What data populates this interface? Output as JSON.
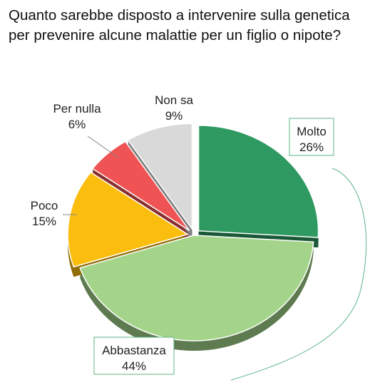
{
  "chart_data": {
    "type": "pie",
    "title": "Quanto sarebbe disposto a intervenire sulla genetica per prevenire alcune malattie per un figlio o nipote?",
    "slices": [
      {
        "label": "Molto",
        "value_label": "26%",
        "value": 26,
        "color": "#2e9a62",
        "exploded": true
      },
      {
        "label": "Abbastanza",
        "value_label": "44%",
        "value": 44,
        "color": "#a4d48a",
        "exploded": false
      },
      {
        "label": "Poco",
        "value_label": "15%",
        "value": 15,
        "color": "#fbbd0e",
        "exploded": true
      },
      {
        "label": "Per nulla",
        "value_label": "6%",
        "value": 6,
        "color": "#ef5354",
        "exploded": true
      },
      {
        "label": "Non sa",
        "value_label": "9%",
        "value": 9,
        "color": "#d9d9d9",
        "exploded": true
      }
    ],
    "label_box_color": "#5cb587",
    "leader_line_color": "#888888"
  }
}
